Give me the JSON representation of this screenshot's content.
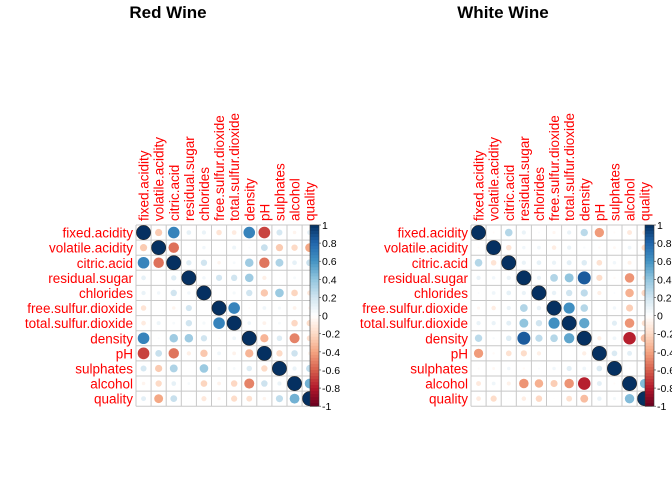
{
  "chart_data": [
    {
      "type": "heatmap",
      "title": "Red Wine",
      "variables": [
        "fixed.acidity",
        "volatile.acidity",
        "citric.acid",
        "residual.sugar",
        "chlorides",
        "free.sulfur.dioxide",
        "total.sulfur.dioxide",
        "density",
        "pH",
        "sulphates",
        "alcohol",
        "quality"
      ],
      "matrix": [
        [
          1.0,
          -0.26,
          0.67,
          0.11,
          0.09,
          -0.15,
          -0.11,
          0.67,
          -0.68,
          0.18,
          -0.06,
          0.12
        ],
        [
          -0.26,
          1.0,
          -0.55,
          0.0,
          0.06,
          -0.01,
          0.08,
          0.02,
          0.23,
          -0.26,
          -0.2,
          -0.39
        ],
        [
          0.67,
          -0.55,
          1.0,
          0.14,
          0.2,
          -0.06,
          0.04,
          0.36,
          -0.54,
          0.31,
          0.11,
          0.23
        ],
        [
          0.11,
          0.0,
          0.14,
          1.0,
          0.06,
          0.19,
          0.2,
          0.36,
          -0.09,
          0.01,
          0.04,
          0.01
        ],
        [
          0.09,
          0.06,
          0.2,
          0.06,
          1.0,
          0.01,
          0.05,
          0.2,
          -0.27,
          0.37,
          -0.22,
          -0.13
        ],
        [
          -0.15,
          -0.01,
          -0.06,
          0.19,
          0.01,
          1.0,
          0.67,
          -0.02,
          0.07,
          0.05,
          -0.07,
          -0.05
        ],
        [
          -0.11,
          0.08,
          0.04,
          0.2,
          0.05,
          0.67,
          1.0,
          0.07,
          -0.07,
          0.04,
          -0.21,
          -0.19
        ],
        [
          0.67,
          0.02,
          0.36,
          0.36,
          0.2,
          -0.02,
          0.07,
          1.0,
          -0.34,
          0.15,
          -0.5,
          -0.17
        ],
        [
          -0.68,
          0.23,
          -0.54,
          -0.09,
          -0.27,
          0.07,
          -0.07,
          -0.34,
          1.0,
          -0.2,
          0.21,
          -0.06
        ],
        [
          0.18,
          -0.26,
          0.31,
          0.01,
          0.37,
          0.05,
          0.04,
          0.15,
          -0.2,
          1.0,
          0.09,
          0.25
        ],
        [
          -0.06,
          -0.2,
          0.11,
          0.04,
          -0.22,
          -0.07,
          -0.21,
          -0.5,
          0.21,
          0.09,
          1.0,
          0.48
        ],
        [
          0.12,
          -0.39,
          0.23,
          0.01,
          -0.13,
          -0.05,
          -0.19,
          -0.17,
          -0.06,
          0.25,
          0.48,
          1.0
        ]
      ],
      "colorbar": {
        "range": [
          -1,
          1
        ],
        "ticks": [
          "1",
          "0.8",
          "0.6",
          "0.4",
          "0.2",
          "0",
          "-0.2",
          "-0.4",
          "-0.6",
          "-0.8",
          "-1"
        ]
      }
    },
    {
      "type": "heatmap",
      "title": "White Wine",
      "variables": [
        "fixed.acidity",
        "volatile.acidity",
        "citric.acid",
        "residual.sugar",
        "chlorides",
        "free.sulfur.dioxide",
        "total.sulfur.dioxide",
        "density",
        "pH",
        "sulphates",
        "alcohol",
        "quality"
      ],
      "matrix": [
        [
          1.0,
          -0.02,
          0.29,
          0.09,
          0.02,
          -0.05,
          0.09,
          0.27,
          -0.43,
          -0.02,
          -0.12,
          -0.11
        ],
        [
          -0.02,
          1.0,
          -0.15,
          0.06,
          0.07,
          -0.1,
          0.09,
          0.03,
          -0.03,
          -0.04,
          0.07,
          -0.19
        ],
        [
          0.29,
          -0.15,
          1.0,
          0.09,
          0.11,
          0.09,
          0.12,
          0.15,
          -0.16,
          0.06,
          -0.08,
          -0.01
        ],
        [
          0.09,
          0.06,
          0.09,
          1.0,
          0.09,
          0.3,
          0.4,
          0.84,
          -0.19,
          -0.03,
          -0.45,
          -0.1
        ],
        [
          0.02,
          0.07,
          0.11,
          0.09,
          1.0,
          0.1,
          0.2,
          0.26,
          -0.09,
          0.02,
          -0.36,
          -0.21
        ],
        [
          -0.05,
          -0.1,
          0.09,
          0.3,
          0.1,
          1.0,
          0.62,
          0.29,
          0.0,
          0.06,
          -0.25,
          0.01
        ],
        [
          0.09,
          0.09,
          0.12,
          0.4,
          0.2,
          0.62,
          1.0,
          0.53,
          0.0,
          0.13,
          -0.45,
          -0.17
        ],
        [
          0.27,
          0.03,
          0.15,
          0.84,
          0.26,
          0.29,
          0.53,
          1.0,
          -0.09,
          0.07,
          -0.78,
          -0.31
        ],
        [
          -0.43,
          -0.03,
          -0.16,
          -0.19,
          -0.09,
          0.0,
          0.0,
          -0.09,
          1.0,
          0.16,
          0.12,
          0.1
        ],
        [
          -0.02,
          -0.04,
          0.06,
          -0.03,
          0.02,
          0.06,
          0.13,
          0.07,
          0.16,
          1.0,
          -0.02,
          0.05
        ],
        [
          -0.12,
          0.07,
          -0.08,
          -0.45,
          -0.36,
          -0.25,
          -0.45,
          -0.78,
          0.12,
          -0.02,
          1.0,
          0.44
        ],
        [
          -0.11,
          -0.19,
          -0.01,
          -0.1,
          -0.21,
          0.01,
          -0.17,
          -0.31,
          0.1,
          0.05,
          0.44,
          1.0
        ]
      ],
      "colorbar": {
        "range": [
          -1,
          1
        ],
        "ticks": [
          "1",
          "0.8",
          "0.6",
          "0.4",
          "0.2",
          "0",
          "-0.2",
          "-0.4",
          "-0.6",
          "-0.8",
          "-1"
        ]
      }
    }
  ]
}
